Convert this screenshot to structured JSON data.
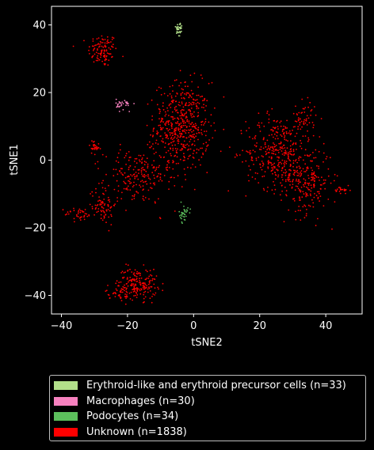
{
  "chart_data": {
    "type": "scatter",
    "title": "",
    "xlabel": "tSNE2",
    "ylabel": "tSNE1",
    "xlim": [
      -43,
      51
    ],
    "ylim": [
      -45.5,
      45.5
    ],
    "xticks": [
      -40,
      -20,
      0,
      20,
      40
    ],
    "yticks": [
      -40,
      -20,
      0,
      20,
      40
    ],
    "xtick_labels": [
      "−40",
      "−20",
      "0",
      "20",
      "40"
    ],
    "ytick_labels": [
      "−40",
      "−20",
      "0",
      "20",
      "40"
    ],
    "grid": false,
    "legend_position": "below plot",
    "series": [
      {
        "name": "Erythroid-like and erythroid precursor cells (n=33)",
        "color": "#b2df8a",
        "clusters": [
          {
            "cx": -4.5,
            "cy": 38.5,
            "sx": 0.5,
            "sy": 1.5,
            "n": 33
          }
        ]
      },
      {
        "name": "Macrophages (n=30)",
        "color": "#f781bf",
        "clusters": [
          {
            "cx": -21.0,
            "cy": 16.5,
            "sx": 1.2,
            "sy": 0.8,
            "n": 30
          }
        ]
      },
      {
        "name": "Podocytes (n=34)",
        "color": "#5cbf5c",
        "clusters": [
          {
            "cx": -3.0,
            "cy": -16.0,
            "sx": 0.7,
            "sy": 1.3,
            "n": 34
          }
        ]
      },
      {
        "name": "Unknown (n=1838)",
        "color": "#ff0000",
        "clusters": [
          {
            "cx": -27.5,
            "cy": 32.5,
            "sx": 2.2,
            "sy": 2.5,
            "n": 110
          },
          {
            "cx": -3.5,
            "cy": 10.0,
            "sx": 4.2,
            "sy": 6.5,
            "n": 520
          },
          {
            "cx": -17.0,
            "cy": -5.0,
            "sx": 5.0,
            "sy": 4.0,
            "n": 200
          },
          {
            "cx": -27.5,
            "cy": -13.0,
            "sx": 2.0,
            "sy": 3.0,
            "n": 80
          },
          {
            "cx": -34.5,
            "cy": -16.0,
            "sx": 2.2,
            "sy": 1.0,
            "n": 35
          },
          {
            "cx": 25.0,
            "cy": 2.5,
            "sx": 4.5,
            "sy": 5.5,
            "n": 330
          },
          {
            "cx": 34.0,
            "cy": -6.0,
            "sx": 3.8,
            "sy": 5.0,
            "n": 230
          },
          {
            "cx": 33.5,
            "cy": 12.5,
            "sx": 1.8,
            "sy": 2.5,
            "n": 55
          },
          {
            "cx": 45.0,
            "cy": -9.0,
            "sx": 1.2,
            "sy": 0.6,
            "n": 25
          },
          {
            "cx": -17.0,
            "cy": -36.5,
            "sx": 3.0,
            "sy": 2.3,
            "n": 190
          },
          {
            "cx": -23.0,
            "cy": -39.5,
            "sx": 1.8,
            "sy": 0.8,
            "n": 35
          },
          {
            "cx": -30.0,
            "cy": 4.0,
            "sx": 0.8,
            "sy": 1.0,
            "n": 28
          }
        ]
      }
    ]
  }
}
